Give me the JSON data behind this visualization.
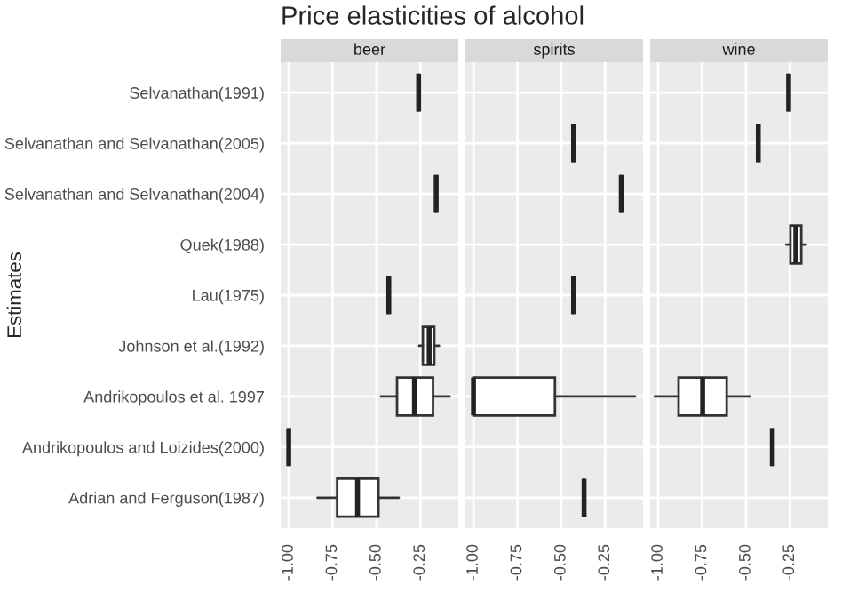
{
  "chart_data": [
    {
      "type": "box",
      "title": "Price elasticities of alcohol",
      "subtitle": "beer",
      "ylabel": "Estimates",
      "orientation": "horizontal",
      "grid": true,
      "categories": [
        "Selvanathan(1991)",
        "Selvanathan and Selvanathan(2005)",
        "Selvanathan and Selvanathan(2004)",
        "Quek(1988)",
        "Lau(1975)",
        "Johnson et al.(1992)",
        "Andrikopoulos et al. 1997",
        "Andrikopoulos and Loizides(2000)",
        "Adrian and Ferguson(1987)"
      ],
      "xlim": [
        -1.046,
        -0.034
      ],
      "xticks": [
        {
          "value": -1.0,
          "label": "-1.00"
        },
        {
          "value": -0.75,
          "label": "-0.75"
        },
        {
          "value": -0.5,
          "label": "-0.50"
        },
        {
          "value": -0.25,
          "label": "-0.25"
        }
      ],
      "boxes": [
        {
          "low": -0.26,
          "q1": -0.26,
          "median": -0.26,
          "q3": -0.26,
          "high": -0.26
        },
        null,
        {
          "low": -0.16,
          "q1": -0.16,
          "median": -0.16,
          "q3": -0.16,
          "high": -0.16
        },
        null,
        {
          "low": -0.43,
          "q1": -0.43,
          "median": -0.43,
          "q3": -0.43,
          "high": -0.43
        },
        {
          "low": -0.257,
          "q1": -0.236,
          "median": -0.2,
          "q3": -0.171,
          "high": -0.144
        },
        {
          "low": -0.475,
          "q1": -0.383,
          "median": -0.284,
          "q3": -0.178,
          "high": -0.083
        },
        {
          "low": -1.0,
          "q1": -1.0,
          "median": -1.0,
          "q3": -1.0,
          "high": -1.0
        },
        {
          "low": -0.836,
          "q1": -0.724,
          "median": -0.608,
          "q3": -0.489,
          "high": -0.373
        }
      ]
    },
    {
      "type": "box",
      "subtitle": "spirits",
      "orientation": "horizontal",
      "grid": true,
      "tick_labels": "x",
      "xlim": [
        -1.046,
        -0.034
      ],
      "xticks": [
        {
          "value": -1.0,
          "label": "-1.00"
        },
        {
          "value": -0.75,
          "label": "-0.75"
        },
        {
          "value": -0.5,
          "label": "-0.50"
        },
        {
          "value": -0.25,
          "label": "-0.25"
        }
      ],
      "boxes": [
        null,
        {
          "low": -0.43,
          "q1": -0.43,
          "median": -0.43,
          "q3": -0.43,
          "high": -0.43
        },
        {
          "low": -0.158,
          "q1": -0.158,
          "median": -0.158,
          "q3": -0.158,
          "high": -0.158
        },
        null,
        {
          "low": -0.43,
          "q1": -0.43,
          "median": -0.43,
          "q3": -0.43,
          "high": -0.43
        },
        null,
        {
          "low": -1.0,
          "q1": -1.0,
          "median": -1.0,
          "q3": -0.536,
          "high": -0.08
        },
        null,
        {
          "low": -0.37,
          "q1": -0.37,
          "median": -0.37,
          "q3": -0.37,
          "high": -0.37
        }
      ]
    },
    {
      "type": "box",
      "subtitle": "wine",
      "orientation": "horizontal",
      "grid": true,
      "tick_labels": "x",
      "xlim": [
        -1.046,
        -0.034
      ],
      "xticks": [
        {
          "value": -1.0,
          "label": "-1.00"
        },
        {
          "value": -0.75,
          "label": "-0.75"
        },
        {
          "value": -0.5,
          "label": "-0.50"
        },
        {
          "value": -0.25,
          "label": "-0.25"
        }
      ],
      "boxes": [
        {
          "low": -0.257,
          "q1": -0.257,
          "median": -0.257,
          "q3": -0.257,
          "high": -0.257
        },
        {
          "low": -0.43,
          "q1": -0.43,
          "median": -0.43,
          "q3": -0.43,
          "high": -0.43
        },
        null,
        {
          "low": -0.271,
          "q1": -0.247,
          "median": -0.216,
          "q3": -0.185,
          "high": -0.158
        },
        null,
        null,
        {
          "low": -1.02,
          "q1": -0.884,
          "median": -0.747,
          "q3": -0.61,
          "high": -0.48
        },
        {
          "low": -0.35,
          "q1": -0.35,
          "median": -0.35,
          "q3": -0.35,
          "high": -0.35
        },
        null
      ]
    }
  ]
}
